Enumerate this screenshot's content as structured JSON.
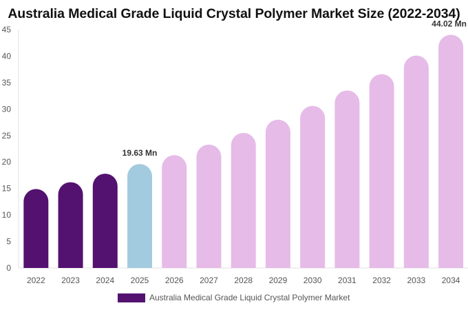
{
  "chart_data": {
    "type": "bar",
    "title": "Australia Medical Grade Liquid Crystal Polymer Market Size (2022-2034)",
    "categories": [
      "2022",
      "2023",
      "2024",
      "2025",
      "2026",
      "2027",
      "2028",
      "2029",
      "2030",
      "2031",
      "2032",
      "2033",
      "2034"
    ],
    "series": [
      {
        "name": "Australia Medical Grade Liquid Crystal Polymer Market",
        "values": [
          14.9,
          16.2,
          17.8,
          19.63,
          21.3,
          23.3,
          25.5,
          28.0,
          30.6,
          33.5,
          36.6,
          40.1,
          44.02
        ]
      }
    ],
    "bar_colors": [
      "#531170",
      "#531170",
      "#531170",
      "#a3cbe0",
      "#e6bbe8",
      "#e6bbe8",
      "#e6bbe8",
      "#e6bbe8",
      "#e6bbe8",
      "#e6bbe8",
      "#e6bbe8",
      "#e6bbe8",
      "#e6bbe8"
    ],
    "legend_color": "#531170",
    "data_labels": [
      {
        "index": 3,
        "text": "19.63 Mn"
      },
      {
        "index": 12,
        "text": "44.02 Mn"
      }
    ],
    "y_ticks": [
      0,
      5,
      10,
      15,
      20,
      25,
      30,
      35,
      40,
      45
    ],
    "ylim": [
      0,
      45
    ],
    "xlabel": "",
    "ylabel": "",
    "grid": false,
    "legend_position": "bottom"
  }
}
